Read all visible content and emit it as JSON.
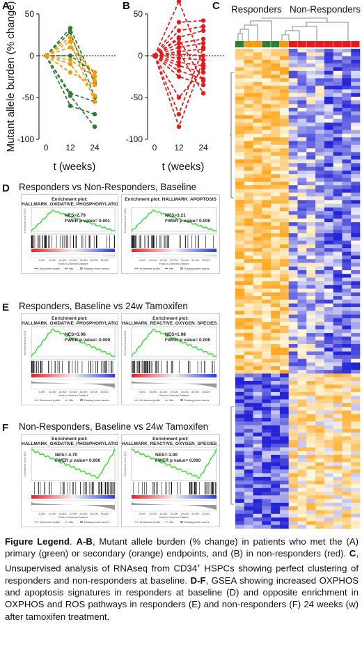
{
  "panels": {
    "A": {
      "letter": "A"
    },
    "B": {
      "letter": "B"
    },
    "C": {
      "letter": "C",
      "group1": "Responders",
      "group2": "Non-Responders"
    },
    "D": {
      "letter": "D",
      "title": "Responders vs Non-Responders, Baseline"
    },
    "E": {
      "letter": "E",
      "title": "Responders, Baseline vs 24w Tamoxifen"
    },
    "F": {
      "letter": "F",
      "title": "Non-Responders, Baseline vs 24w Tamoxifen"
    }
  },
  "colors": {
    "green": "#2e7d32",
    "orange": "#f39c12",
    "red": "#e41a1c",
    "heat_high": "#f5a623",
    "heat_low": "#2b2bd4"
  },
  "chart_data": [
    {
      "type": "line",
      "panel": "A",
      "ylabel": "Mutant allele burden (% change)",
      "xlabel": "t (weeks)",
      "x": [
        0,
        12,
        24
      ],
      "ylim": [
        -100,
        50
      ],
      "yticks": [
        "50",
        "0",
        "-50",
        "-100"
      ],
      "xticks": [
        "0",
        "12",
        "24"
      ],
      "series": [
        {
          "group": "green",
          "values": [
            0,
            33,
            -33
          ]
        },
        {
          "group": "green",
          "values": [
            0,
            28,
            -50
          ]
        },
        {
          "group": "green",
          "values": [
            0,
            -48,
            -85
          ]
        },
        {
          "group": "green",
          "values": [
            0,
            -60,
            -70
          ]
        },
        {
          "group": "green",
          "values": [
            0,
            -45,
            -55
          ]
        },
        {
          "group": "green",
          "values": [
            0,
            0,
            -20
          ]
        },
        {
          "group": "orange",
          "values": [
            0,
            22,
            -30
          ]
        },
        {
          "group": "orange",
          "values": [
            0,
            17,
            -55
          ]
        },
        {
          "group": "orange",
          "values": [
            0,
            -5,
            -25
          ]
        },
        {
          "group": "orange",
          "values": [
            0,
            -20,
            -35
          ]
        },
        {
          "group": "orange",
          "values": [
            0,
            -10,
            -48
          ]
        },
        {
          "group": "orange",
          "values": [
            0,
            10,
            -20
          ]
        }
      ]
    },
    {
      "type": "line",
      "panel": "B",
      "xlabel": "t (weeks)",
      "x": [
        0,
        12,
        24
      ],
      "ylim": [
        -100,
        50
      ],
      "yticks": [
        "50",
        "0",
        "-50",
        "-100"
      ],
      "xticks": [
        "0",
        "12",
        "24"
      ],
      "series": [
        {
          "group": "red",
          "values": [
            0,
            65,
            -10
          ]
        },
        {
          "group": "red",
          "values": [
            0,
            40,
            42
          ]
        },
        {
          "group": "red",
          "values": [
            0,
            30,
            35
          ]
        },
        {
          "group": "red",
          "values": [
            0,
            22,
            30
          ]
        },
        {
          "group": "red",
          "values": [
            0,
            15,
            20
          ]
        },
        {
          "group": "red",
          "values": [
            0,
            10,
            15
          ]
        },
        {
          "group": "red",
          "values": [
            0,
            5,
            8
          ]
        },
        {
          "group": "red",
          "values": [
            0,
            2,
            0
          ]
        },
        {
          "group": "red",
          "values": [
            0,
            -3,
            -5
          ]
        },
        {
          "group": "red",
          "values": [
            0,
            -8,
            -12
          ]
        },
        {
          "group": "red",
          "values": [
            0,
            -12,
            -20
          ]
        },
        {
          "group": "red",
          "values": [
            0,
            -18,
            -28
          ]
        },
        {
          "group": "red",
          "values": [
            0,
            -25,
            -35
          ]
        },
        {
          "group": "red",
          "values": [
            0,
            -50,
            -15
          ]
        },
        {
          "group": "red",
          "values": [
            0,
            -70,
            10
          ]
        },
        {
          "group": "red",
          "values": [
            0,
            -85,
            -5
          ]
        },
        {
          "group": "red",
          "values": [
            0,
            5,
            -45
          ]
        },
        {
          "group": "red",
          "values": [
            0,
            20,
            -30
          ]
        }
      ]
    }
  ],
  "gsea": [
    {
      "id": "D1",
      "title": "Enrichment plot:\nHALLMARK_OXIDATIVE_PHOSPHORYLATION",
      "nes": "NES=2.79\nFWER p value= 0.001",
      "shape": "up"
    },
    {
      "id": "D2",
      "title": "Enrichment plot: HALLMARK_APOPTOSIS",
      "nes": "NES=3.21\nFWER p value= 0.000",
      "shape": "up"
    },
    {
      "id": "E1",
      "title": "Enrichment plot:\nHALLMARK_OXIDATIVE_PHOSPHORYLATION",
      "nes": "NES=3.08\nFWER p value= 0.000",
      "shape": "up"
    },
    {
      "id": "E2",
      "title": "Enrichment plot:\nHALLMARK_REACTIVE_OXYGEN_SPECIES_PATHWAY",
      "nes": "NES=1.98\nFWER p value= 0.000",
      "shape": "up"
    },
    {
      "id": "F1",
      "title": "Enrichment plot:\nHALLMARK_OXIDATIVE_PHOSPHORYLATION",
      "nes": "NES=-4.70\nFWER p value= 0.000",
      "shape": "down"
    },
    {
      "id": "F2",
      "title": "Enrichment plot:\nHALLMARK_REACTIVE_OXYGEN_SPECIES_PATHWAY",
      "nes": "NES=-3.00\nFWER p value= 0.000",
      "shape": "down"
    }
  ],
  "gsea_labels": {
    "ylabel": "Enrichment score (ES)",
    "rank_label": "Rank in Ordered Dataset",
    "legend_profile": "Enrichment profile",
    "legend_hits": "Hits",
    "legend_ranking": "Ranking metric scores",
    "rank_ticks": [
      "5,000",
      "10,000",
      "15,000",
      "20,000",
      "25,000",
      "30,000",
      "35,000"
    ]
  },
  "legend": {
    "lead": "Figure Legend",
    "p1_label": "A-B",
    "p1_text": ", Mutant allele burden (% change) in patients who met the (A) primary (green) or secondary (orange) endpoints, and (B) in non-responders (red).",
    "p2_label": "C",
    "p2_text_a": ", Unsupervised analysis of RNAseq from CD34",
    "p2_sup": "+",
    "p2_text_b": " HSPCs showing perfect clustering of responders and non-responders at baseline.",
    "p3_label": "D-F",
    "p3_text": ", GSEA showing increased OXPHOS and apoptosis signatures in responders at baseline (D) and opposite enrichment in OXPHOS and ROS pathways in responders (E) and non-responders (F) 24 weeks (w) after tamoxifen treatment."
  }
}
